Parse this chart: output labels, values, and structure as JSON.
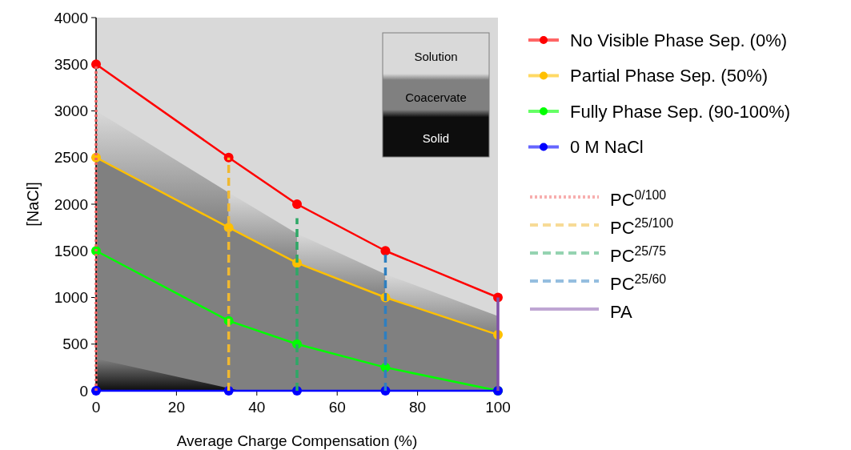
{
  "chart_data": {
    "type": "line",
    "xlabel": "Average Charge Compensation (%)",
    "ylabel": "[NaCl]",
    "xlim": [
      0,
      100
    ],
    "xticks": [
      0,
      20,
      40,
      60,
      80,
      100
    ],
    "ylim": [
      0,
      4000
    ],
    "yticks": [
      0,
      500,
      1000,
      1500,
      2000,
      2500,
      3000,
      3500,
      4000
    ],
    "legend": "right",
    "grid": false,
    "annotations": [
      "Solution",
      "Coacervate",
      "Solid"
    ],
    "series": [
      {
        "name": "No Visible Phase Sep. (0%)",
        "color": "#ff0000",
        "marker": "circle",
        "line_style": "solid",
        "x": [
          0,
          33,
          50,
          72,
          100
        ],
        "values": [
          3500,
          2500,
          2000,
          1500,
          1000
        ]
      },
      {
        "name": "Partial Phase Sep. (50%)",
        "color": "#ffc000",
        "marker": "circle",
        "line_style": "solid",
        "x": [
          0,
          33,
          50,
          72,
          100
        ],
        "values": [
          2500,
          1750,
          1370,
          1000,
          600
        ]
      },
      {
        "name": "Fully Phase Sep. (90-100%)",
        "color": "#00ff00",
        "marker": "circle",
        "line_style": "solid",
        "x": [
          0,
          33,
          50,
          72,
          100
        ],
        "values": [
          1500,
          750,
          500,
          250,
          0
        ]
      },
      {
        "name": "0 M NaCl",
        "color": "#0000ff",
        "marker": "circle",
        "line_style": "solid",
        "x": [
          0,
          33,
          50,
          72,
          100
        ],
        "values": [
          0,
          0,
          0,
          0,
          0
        ]
      },
      {
        "name": "PC$^{0/100}$",
        "color": "#f06060",
        "marker": "none",
        "line_style": "dotted",
        "x": [
          0,
          0
        ],
        "values": [
          0,
          3500
        ]
      },
      {
        "name": "PC$^{25/100}$",
        "color": "#f0b830",
        "marker": "none",
        "line_style": "dashed",
        "x": [
          33,
          33
        ],
        "values": [
          0,
          2500
        ]
      },
      {
        "name": "PC$^{25/75}$",
        "color": "#2ea866",
        "marker": "none",
        "line_style": "dashed",
        "x": [
          50,
          50
        ],
        "values": [
          0,
          1850
        ]
      },
      {
        "name": "PC$^{25/60}$",
        "color": "#2e7fc0",
        "marker": "none",
        "line_style": "dashed",
        "x": [
          72,
          72
        ],
        "values": [
          0,
          1500
        ]
      },
      {
        "name": "PA",
        "color": "#8050a8",
        "marker": "none",
        "line_style": "solid",
        "x": [
          100,
          100
        ],
        "values": [
          0,
          1000
        ]
      }
    ]
  }
}
